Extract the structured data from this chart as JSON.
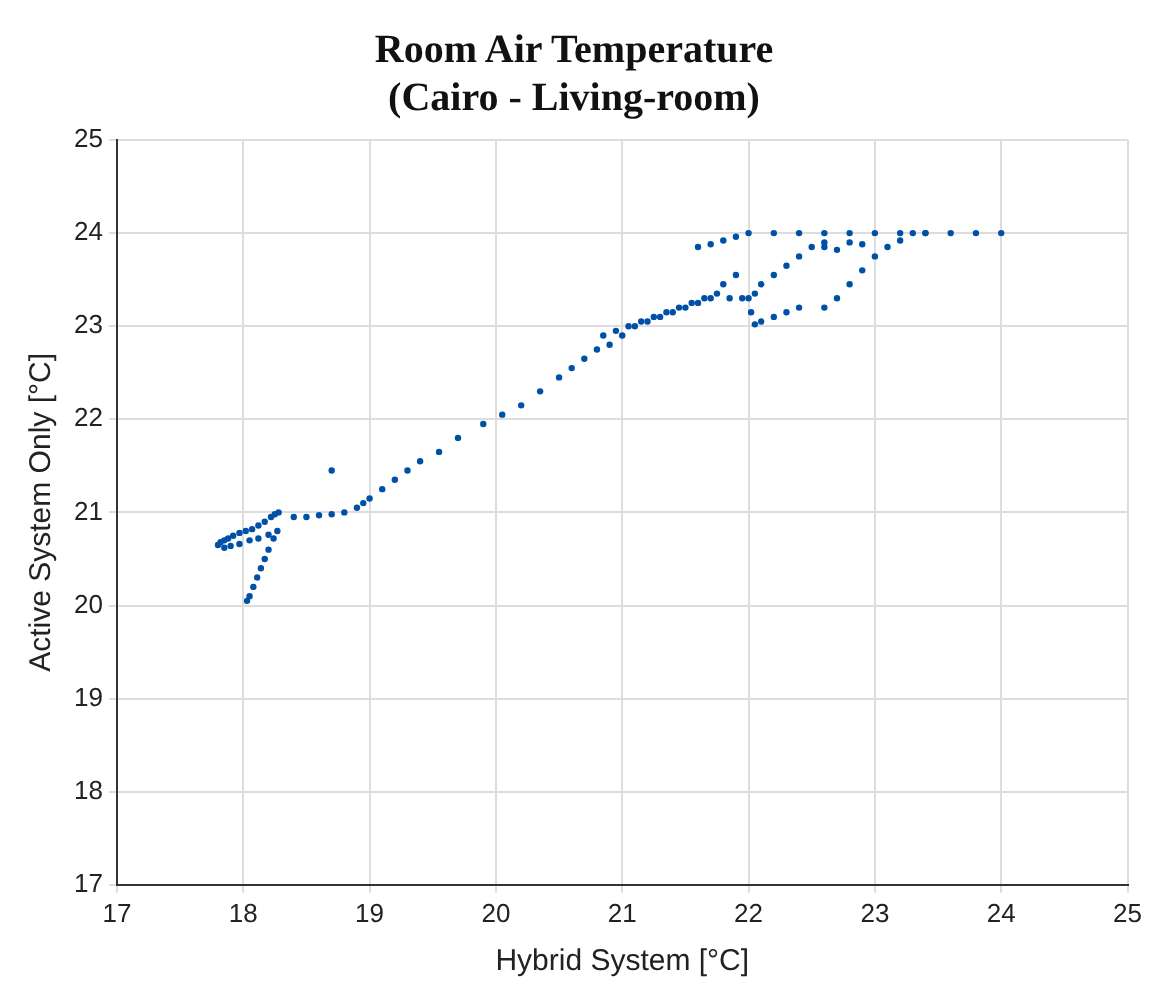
{
  "chart_data": {
    "type": "scatter",
    "title": "Room Air Temperature",
    "subtitle": "(Cairo - Living-room)",
    "xlabel": "Hybrid System [°C]",
    "ylabel": "Active System Only [°C]",
    "xlim": [
      17,
      25
    ],
    "xticks": [
      17,
      18,
      19,
      20,
      21,
      22,
      23,
      24,
      25
    ],
    "ylim": [
      17,
      25
    ],
    "yticks": [
      17,
      18,
      19,
      20,
      21,
      22,
      23,
      24,
      25
    ],
    "grid": true,
    "marker": "circle",
    "series": [
      {
        "color": "#0050a8",
        "x": [
          17.8,
          17.82,
          17.85,
          17.88,
          17.92,
          17.97,
          18.02,
          18.07,
          18.12,
          18.17,
          18.22,
          18.25,
          18.28,
          17.85,
          17.9,
          17.97,
          18.05,
          18.12,
          18.2,
          18.27,
          18.24,
          18.2,
          18.17,
          18.14,
          18.11,
          18.08,
          18.05,
          18.03,
          18.4,
          18.5,
          18.6,
          18.7,
          18.8,
          18.9,
          18.95,
          19.0,
          19.1,
          19.2,
          19.3,
          19.4,
          19.55,
          19.7,
          19.9,
          20.05,
          20.2,
          20.35,
          20.5,
          20.6,
          20.7,
          20.8,
          18.7,
          20.85,
          20.95,
          21.05,
          21.15,
          21.25,
          21.35,
          21.45,
          21.55,
          21.65,
          21.75,
          21.85,
          21.95,
          20.9,
          21.0,
          21.1,
          21.2,
          21.3,
          21.4,
          21.5,
          21.6,
          21.7,
          21.8,
          21.9,
          22.0,
          22.02,
          22.05,
          22.1,
          22.2,
          22.3,
          22.4,
          22.6,
          22.7,
          22.8,
          22.9,
          23.0,
          23.1,
          23.2,
          23.3,
          23.4,
          22.05,
          22.1,
          22.2,
          22.3,
          22.4,
          22.5,
          22.6,
          21.6,
          21.7,
          21.8,
          21.9,
          22.0,
          22.2,
          22.4,
          22.6,
          22.8,
          23.0,
          23.2,
          23.4,
          23.6,
          23.8,
          24.0,
          22.6,
          22.7,
          22.8,
          22.9
        ],
        "values": [
          20.65,
          20.68,
          20.7,
          20.72,
          20.75,
          20.78,
          20.8,
          20.82,
          20.86,
          20.9,
          20.95,
          20.98,
          21.0,
          20.62,
          20.64,
          20.66,
          20.7,
          20.72,
          20.76,
          20.8,
          20.72,
          20.6,
          20.5,
          20.4,
          20.3,
          20.2,
          20.1,
          20.05,
          20.95,
          20.95,
          20.97,
          20.98,
          21.0,
          21.05,
          21.1,
          21.15,
          21.25,
          21.35,
          21.45,
          21.55,
          21.65,
          21.8,
          21.95,
          22.05,
          22.15,
          22.3,
          22.45,
          22.55,
          22.65,
          22.75,
          21.45,
          22.9,
          22.95,
          23.0,
          23.05,
          23.1,
          23.15,
          23.2,
          23.25,
          23.3,
          23.35,
          23.3,
          23.3,
          22.8,
          22.9,
          23.0,
          23.05,
          23.1,
          23.15,
          23.2,
          23.25,
          23.3,
          23.45,
          23.55,
          23.3,
          23.15,
          23.02,
          23.05,
          23.1,
          23.15,
          23.2,
          23.2,
          23.3,
          23.45,
          23.6,
          23.75,
          23.85,
          23.92,
          24.0,
          24.0,
          23.35,
          23.45,
          23.55,
          23.65,
          23.75,
          23.85,
          23.9,
          23.85,
          23.88,
          23.92,
          23.96,
          24.0,
          24.0,
          24.0,
          24.0,
          24.0,
          24.0,
          24.0,
          24.0,
          24.0,
          24.0,
          24.0,
          23.85,
          23.82,
          23.9,
          23.88
        ]
      }
    ]
  }
}
